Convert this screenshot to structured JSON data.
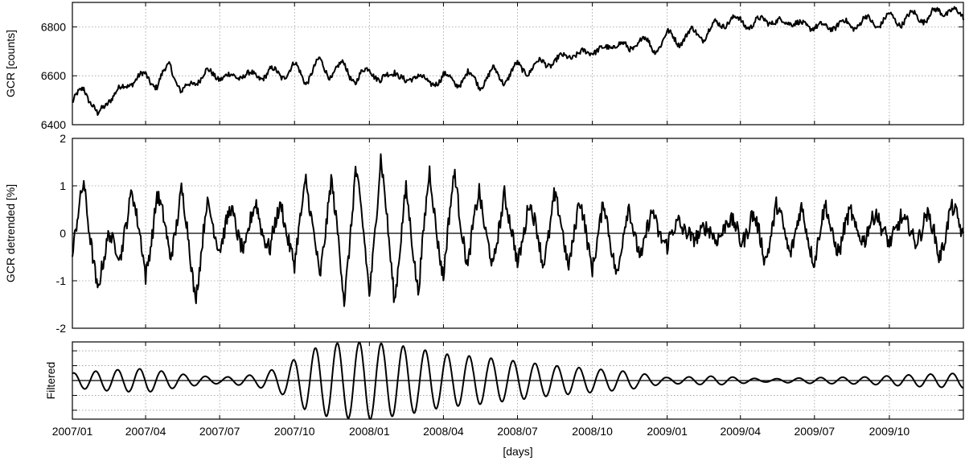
{
  "chart_data": [
    {
      "type": "line",
      "panel": "top",
      "ylabel": "GCR [counts]",
      "ylim": [
        6400,
        6900
      ],
      "yticks": [
        6400,
        6600,
        6800
      ],
      "ytick_labels": [
        "6400",
        "6600",
        "6800"
      ],
      "xlim": [
        "2007-01-01",
        "2009-12-31"
      ],
      "grid": true,
      "series": [
        {
          "x": [
            "2007-01-01",
            "2007-01-15",
            "2007-02-01",
            "2007-02-15",
            "2007-03-01",
            "2007-03-15",
            "2007-04-01",
            "2007-04-15",
            "2007-05-01",
            "2007-05-15",
            "2007-06-01",
            "2007-06-15",
            "2007-07-01",
            "2007-07-15",
            "2007-08-01",
            "2007-08-15",
            "2007-09-01",
            "2007-09-15",
            "2007-10-01",
            "2007-10-15",
            "2007-11-01",
            "2007-11-15",
            "2007-12-01",
            "2007-12-15",
            "2008-01-01",
            "2008-01-15",
            "2008-02-01",
            "2008-02-15",
            "2008-03-01",
            "2008-03-15",
            "2008-04-01",
            "2008-04-15",
            "2008-05-01",
            "2008-05-15",
            "2008-06-01",
            "2008-06-15",
            "2008-07-01",
            "2008-07-15",
            "2008-08-01",
            "2008-08-15",
            "2008-09-01",
            "2008-09-15",
            "2008-10-01",
            "2008-10-15",
            "2008-11-01",
            "2008-11-15",
            "2008-12-01",
            "2008-12-15",
            "2009-01-01",
            "2009-01-15",
            "2009-02-01",
            "2009-02-15",
            "2009-03-01",
            "2009-03-15",
            "2009-04-01",
            "2009-04-15",
            "2009-05-01",
            "2009-05-15",
            "2009-06-01",
            "2009-06-15",
            "2009-07-01",
            "2009-07-15",
            "2009-08-01",
            "2009-08-15",
            "2009-09-01",
            "2009-09-15",
            "2009-10-01",
            "2009-10-15",
            "2009-11-01",
            "2009-11-15",
            "2009-12-01",
            "2009-12-15",
            "2009-12-31"
          ],
          "values": [
            6480,
            6560,
            6430,
            6510,
            6540,
            6580,
            6600,
            6560,
            6650,
            6530,
            6580,
            6610,
            6600,
            6590,
            6610,
            6590,
            6620,
            6600,
            6640,
            6580,
            6660,
            6600,
            6650,
            6570,
            6640,
            6570,
            6630,
            6560,
            6620,
            6550,
            6610,
            6560,
            6610,
            6560,
            6620,
            6580,
            6640,
            6620,
            6660,
            6650,
            6690,
            6680,
            6710,
            6700,
            6740,
            6700,
            6760,
            6700,
            6770,
            6740,
            6780,
            6760,
            6810,
            6820,
            6830,
            6800,
            6840,
            6810,
            6830,
            6800,
            6810,
            6790,
            6820,
            6800,
            6830,
            6810,
            6840,
            6820,
            6850,
            6830,
            6870,
            6860,
            6850
          ]
        }
      ]
    },
    {
      "type": "line",
      "panel": "middle",
      "ylabel": "GCR detrended [%]",
      "ylim": [
        -2,
        2
      ],
      "yticks": [
        -2,
        -1,
        0,
        1,
        2
      ],
      "ytick_labels": [
        "-2",
        "-1",
        "0",
        "1",
        "2"
      ],
      "xlim": [
        "2007-01-01",
        "2009-12-31"
      ],
      "grid": true,
      "series": [
        {
          "x": [
            "2007-01-01",
            "2007-01-15",
            "2007-02-01",
            "2007-02-15",
            "2007-03-01",
            "2007-03-15",
            "2007-04-01",
            "2007-04-15",
            "2007-05-01",
            "2007-05-15",
            "2007-06-01",
            "2007-06-15",
            "2007-07-01",
            "2007-07-15",
            "2007-08-01",
            "2007-08-15",
            "2007-09-01",
            "2007-09-15",
            "2007-10-01",
            "2007-10-15",
            "2007-11-01",
            "2007-11-15",
            "2007-12-01",
            "2007-12-15",
            "2008-01-01",
            "2008-01-15",
            "2008-02-01",
            "2008-02-15",
            "2008-03-01",
            "2008-03-15",
            "2008-04-01",
            "2008-04-15",
            "2008-05-01",
            "2008-05-15",
            "2008-06-01",
            "2008-06-15",
            "2008-07-01",
            "2008-07-15",
            "2008-08-01",
            "2008-08-15",
            "2008-09-01",
            "2008-09-15",
            "2008-10-01",
            "2008-10-15",
            "2008-11-01",
            "2008-11-15",
            "2008-12-01",
            "2008-12-15",
            "2009-01-01",
            "2009-01-15",
            "2009-02-01",
            "2009-02-15",
            "2009-03-01",
            "2009-03-15",
            "2009-04-01",
            "2009-04-15",
            "2009-05-01",
            "2009-05-15",
            "2009-06-01",
            "2009-06-15",
            "2009-07-01",
            "2009-07-15",
            "2009-08-01",
            "2009-08-15",
            "2009-09-01",
            "2009-09-15",
            "2009-10-01",
            "2009-10-15",
            "2009-11-01",
            "2009-11-15",
            "2009-12-01",
            "2009-12-15",
            "2009-12-31"
          ],
          "values": [
            -0.6,
            1.2,
            -1.4,
            0.2,
            -0.7,
            1.1,
            -1.0,
            0.9,
            -0.5,
            0.9,
            -1.3,
            0.5,
            -0.2,
            0.4,
            -0.3,
            0.6,
            -0.4,
            0.7,
            -0.8,
            1.3,
            -1.1,
            1.3,
            -1.5,
            1.4,
            -1.2,
            1.5,
            -1.3,
            0.8,
            -1.1,
            1.2,
            -0.9,
            1.3,
            -0.8,
            1.0,
            -0.9,
            1.0,
            -0.8,
            0.8,
            -0.7,
            0.8,
            -0.6,
            0.6,
            -0.6,
            0.5,
            -0.8,
            0.5,
            -0.5,
            0.5,
            -0.4,
            0.4,
            -0.3,
            0.3,
            -0.3,
            0.4,
            -0.2,
            0.4,
            -0.5,
            0.5,
            -0.3,
            0.4,
            -0.5,
            0.5,
            -0.4,
            0.5,
            -0.3,
            0.6,
            -0.4,
            0.5,
            -0.3,
            0.5,
            -0.5,
            0.5,
            0.0
          ]
        }
      ]
    },
    {
      "type": "line",
      "panel": "bottom",
      "ylabel": "Filtered",
      "ylim": [
        -1.3,
        1.3
      ],
      "xlim": [
        "2007-01-01",
        "2009-12-31"
      ],
      "xlabel": "[days]",
      "xticks": [
        "2007-01-01",
        "2007-04-01",
        "2007-07-01",
        "2007-10-01",
        "2008-01-01",
        "2008-04-01",
        "2008-07-01",
        "2008-10-01",
        "2009-01-01",
        "2009-04-01",
        "2009-07-01",
        "2009-10-01"
      ],
      "xtick_labels": [
        "2007/01",
        "2007/04",
        "2007/07",
        "2007/10",
        "2008/01",
        "2008/04",
        "2008/07",
        "2008/10",
        "2009/01",
        "2009/04",
        "2009/07",
        "2009/10"
      ],
      "grid": true,
      "period_days": 27,
      "series": [
        {
          "amplitude_envelope": {
            "x": [
              "2007-01-01",
              "2007-02-15",
              "2007-04-01",
              "2007-05-20",
              "2007-07-01",
              "2007-08-15",
              "2007-09-20",
              "2007-10-15",
              "2007-11-15",
              "2008-01-01",
              "2008-02-15",
              "2008-04-01",
              "2008-05-15",
              "2008-07-01",
              "2008-08-15",
              "2008-10-01",
              "2008-11-15",
              "2009-01-01",
              "2009-03-01",
              "2009-05-01",
              "2009-07-01",
              "2009-09-01",
              "2009-11-01",
              "2009-12-31"
            ],
            "values": [
              0.25,
              0.35,
              0.4,
              0.2,
              0.1,
              0.2,
              0.5,
              1.0,
              1.25,
              1.3,
              1.15,
              0.9,
              0.8,
              0.65,
              0.5,
              0.4,
              0.3,
              0.1,
              0.15,
              0.05,
              0.1,
              0.12,
              0.2,
              0.25
            ]
          }
        }
      ]
    }
  ]
}
